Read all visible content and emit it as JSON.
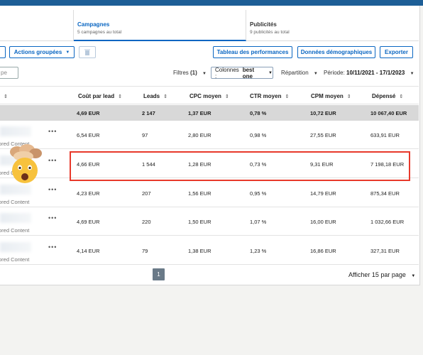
{
  "tabs": {
    "campagnes": {
      "title": "Campagnes",
      "subtitle": "5 campagnes au total"
    },
    "publicites": {
      "title": "Publicités",
      "subtitle": "9 publicités au total"
    }
  },
  "toolbar": {
    "actions_label": "Actions groupées",
    "tableau_label": "Tableau des performances",
    "demo_label": "Données démographiques",
    "export_label": "Exporter"
  },
  "filters": {
    "search_value": "pe",
    "filtres_label": "Filtres",
    "filtres_count": "(1)",
    "colonnes_label": "Colonnes :",
    "colonnes_value": "best one",
    "repartition_label": "Répartition",
    "periode_label": "Période:",
    "periode_value": "10/11/2021 - 17/1/2023"
  },
  "columns": [
    "Coût par lead",
    "Leads",
    "CPC moyen",
    "CTR moyen",
    "CPM moyen",
    "Dépensé"
  ],
  "totals": [
    "4,69 EUR",
    "2 147",
    "1,37 EUR",
    "0,78 %",
    "10,72 EUR",
    "10 067,40 EUR"
  ],
  "rows": [
    {
      "sponsored": "ored Content",
      "cells": [
        "6,54 EUR",
        "97",
        "2,80 EUR",
        "0,98 %",
        "27,55 EUR",
        "633,91 EUR"
      ]
    },
    {
      "sponsored": "ored Content",
      "cells": [
        "4,66 EUR",
        "1 544",
        "1,28 EUR",
        "0,73 %",
        "9,31 EUR",
        "7 198,18 EUR"
      ]
    },
    {
      "sponsored": "ored Content",
      "cells": [
        "4,23 EUR",
        "207",
        "1,56 EUR",
        "0,95 %",
        "14,79 EUR",
        "875,34 EUR"
      ]
    },
    {
      "sponsored": "ored Content",
      "cells": [
        "4,69 EUR",
        "220",
        "1,50 EUR",
        "1,07 %",
        "16,00 EUR",
        "1 032,66 EUR"
      ]
    },
    {
      "sponsored": "ored Content",
      "cells": [
        "4,14 EUR",
        "79",
        "1,38 EUR",
        "1,23 %",
        "16,86 EUR",
        "327,31 EUR"
      ]
    }
  ],
  "pagination": {
    "current_page": "1",
    "per_page_label": "Afficher 15 par page"
  },
  "colors": {
    "accent": "#0a66c2",
    "highlight": "#e8392b",
    "topbar": "#1d5e96"
  },
  "icons": [
    "trash-icon",
    "sort-icon",
    "chevron-down-icon",
    "more-icon",
    "exploding-head-emoji"
  ]
}
